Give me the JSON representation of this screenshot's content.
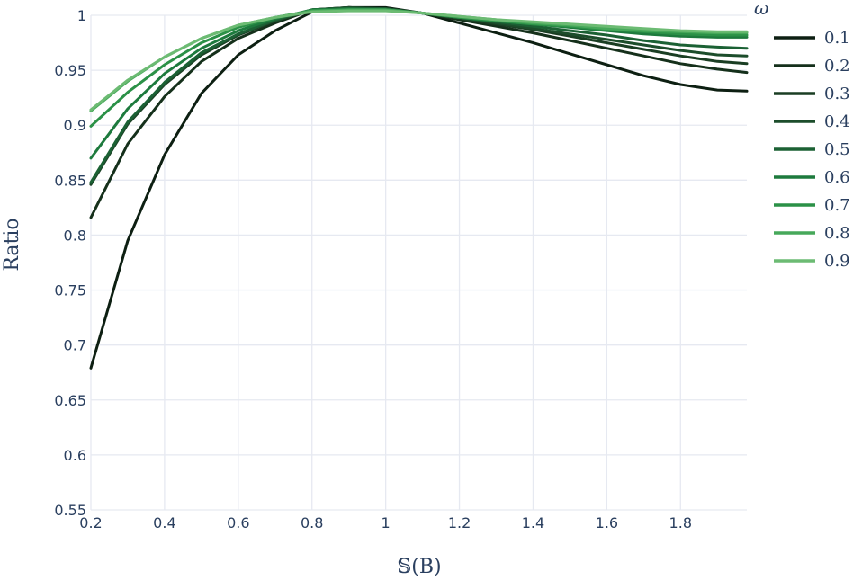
{
  "chart_data": {
    "type": "line",
    "title": "",
    "xlabel": "𝕊(B)",
    "ylabel": "Ratio",
    "xlim": [
      0.2,
      1.98
    ],
    "ylim": [
      0.55,
      1.0
    ],
    "xticks": [
      0.2,
      0.4,
      0.6,
      0.8,
      1.0,
      1.2,
      1.4,
      1.6,
      1.8
    ],
    "xtick_labels": [
      "0.2",
      "0.4",
      "0.6",
      "0.8",
      "1",
      "1.2",
      "1.4",
      "1.6",
      "1.8"
    ],
    "yticks": [
      0.55,
      0.6,
      0.65,
      0.7,
      0.75,
      0.8,
      0.85,
      0.9,
      0.95,
      1.0
    ],
    "ytick_labels": [
      "0.55",
      "0.6",
      "0.65",
      "0.7",
      "0.75",
      "0.8",
      "0.85",
      "0.9",
      "0.95",
      "1"
    ],
    "grid": true,
    "legend": {
      "title": "ω",
      "position": "right"
    },
    "x": [
      0.2,
      0.3,
      0.4,
      0.5,
      0.6,
      0.7,
      0.8,
      0.9,
      1.0,
      1.1,
      1.2,
      1.3,
      1.4,
      1.5,
      1.6,
      1.7,
      1.8,
      1.9,
      1.98
    ],
    "series": [
      {
        "name": "0.1",
        "color": "#0d1f12",
        "values": [
          0.679,
          0.795,
          0.873,
          0.929,
          0.964,
          0.986,
          1.003,
          1.007,
          1.007,
          1.002,
          0.993,
          0.984,
          0.975,
          0.965,
          0.955,
          0.945,
          0.937,
          0.932,
          0.931
        ]
      },
      {
        "name": "0.2",
        "color": "#15301b",
        "values": [
          0.816,
          0.883,
          0.926,
          0.958,
          0.979,
          0.993,
          1.005,
          1.007,
          1.006,
          1.002,
          0.996,
          0.99,
          0.984,
          0.977,
          0.97,
          0.963,
          0.956,
          0.951,
          0.948
        ]
      },
      {
        "name": "0.3",
        "color": "#1a3e23",
        "values": [
          0.846,
          0.901,
          0.937,
          0.964,
          0.982,
          0.995,
          1.005,
          1.007,
          1.006,
          1.002,
          0.997,
          0.992,
          0.987,
          0.981,
          0.975,
          0.969,
          0.963,
          0.958,
          0.956
        ]
      },
      {
        "name": "0.4",
        "color": "#1c4d2b",
        "values": [
          0.847,
          0.902,
          0.938,
          0.965,
          0.983,
          0.995,
          1.005,
          1.007,
          1.006,
          1.002,
          0.998,
          0.993,
          0.988,
          0.983,
          0.978,
          0.973,
          0.968,
          0.964,
          0.963
        ]
      },
      {
        "name": "0.5",
        "color": "#1b6134",
        "values": [
          0.848,
          0.903,
          0.939,
          0.966,
          0.983,
          0.996,
          1.005,
          1.006,
          1.006,
          1.002,
          0.998,
          0.994,
          0.99,
          0.986,
          0.982,
          0.977,
          0.973,
          0.971,
          0.97
        ]
      },
      {
        "name": "0.6",
        "color": "#1d7a3d",
        "values": [
          0.87,
          0.915,
          0.947,
          0.97,
          0.986,
          0.997,
          1.005,
          1.006,
          1.005,
          1.002,
          0.998,
          0.995,
          0.992,
          0.989,
          0.986,
          0.983,
          0.981,
          0.98,
          0.98
        ]
      },
      {
        "name": "0.7",
        "color": "#2b9147",
        "values": [
          0.899,
          0.93,
          0.955,
          0.975,
          0.989,
          0.998,
          1.004,
          1.005,
          1.005,
          1.002,
          0.998,
          0.995,
          0.992,
          0.99,
          0.987,
          0.985,
          0.983,
          0.982,
          0.982
        ]
      },
      {
        "name": "0.8",
        "color": "#46a85a",
        "values": [
          0.913,
          0.94,
          0.962,
          0.979,
          0.991,
          0.998,
          1.004,
          1.005,
          1.005,
          1.002,
          0.999,
          0.996,
          0.993,
          0.991,
          0.988,
          0.986,
          0.985,
          0.984,
          0.984
        ]
      },
      {
        "name": "0.9",
        "color": "#6cbb73",
        "values": [
          0.914,
          0.941,
          0.962,
          0.979,
          0.991,
          0.998,
          1.003,
          1.004,
          1.004,
          1.002,
          0.999,
          0.996,
          0.994,
          0.992,
          0.99,
          0.988,
          0.986,
          0.985,
          0.985
        ]
      }
    ]
  }
}
